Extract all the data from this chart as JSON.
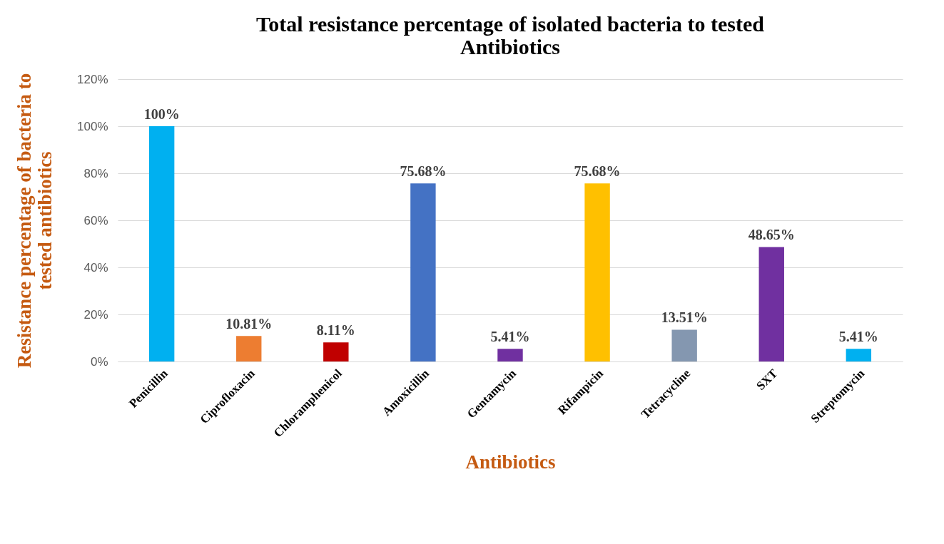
{
  "chart_data": {
    "type": "bar",
    "title": "Total resistance percentage of isolated bacteria to tested Antibiotics",
    "xlabel": "Antibiotics",
    "ylabel": "Resistance percentage of bacteria to tested antibiotics",
    "categories": [
      "Penicillin",
      "Ciprofloxacin",
      "Chloramphenicol",
      "Amoxicillin",
      "Gentamycin",
      "Rifampicin",
      "Tetracycline",
      "SXT",
      "Streptomycin"
    ],
    "values": [
      100,
      10.81,
      8.11,
      75.68,
      5.41,
      75.68,
      13.51,
      48.65,
      5.41
    ],
    "colors": [
      "#00b0f0",
      "#ed7d31",
      "#c00000",
      "#4472c4",
      "#7030a0",
      "#ffc000",
      "#8497b0",
      "#7030a0",
      "#00b0f0"
    ],
    "value_labels": [
      "100%",
      "10.81%",
      "8.11%",
      "75.68%",
      "5.41%",
      "75.68%",
      "13.51%",
      "48.65%",
      "5.41%"
    ],
    "ylim": [
      0,
      120
    ],
    "yticks": [
      {
        "value": 0,
        "label": "0%"
      },
      {
        "value": 20,
        "label": "20%"
      },
      {
        "value": 40,
        "label": "40%"
      },
      {
        "value": 60,
        "label": "60%"
      },
      {
        "value": 80,
        "label": "80%"
      },
      {
        "value": 100,
        "label": "100%"
      },
      {
        "value": 120,
        "label": "120%"
      }
    ],
    "grid": "y"
  }
}
